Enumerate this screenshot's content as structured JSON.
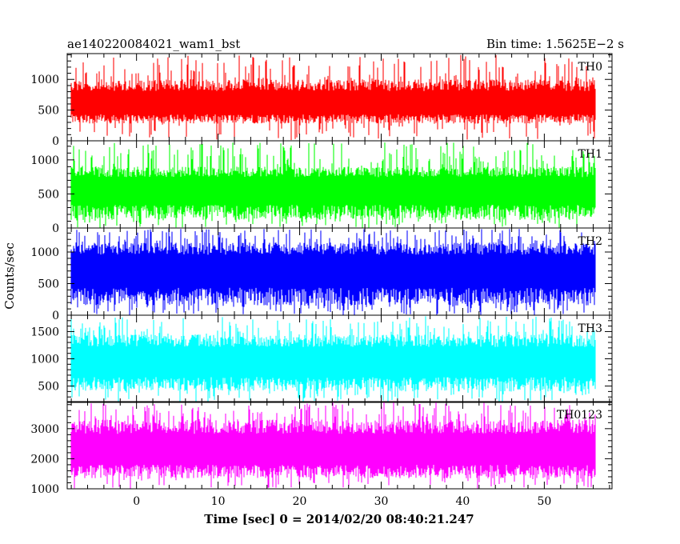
{
  "header": {
    "left_title": "ae140220084021_wam1_bst",
    "right_title": "Bin time: 1.5625E−2 s"
  },
  "chart_data": {
    "type": "line",
    "title": "ae140220084021_wam1_bst",
    "subtitle": "Bin time: 1.5625E−2 s",
    "xlabel": "Time [sec] 0 = 2014/02/20 08:40:21.247",
    "ylabel": "Counts/sec",
    "xlim": [
      -8.5,
      58.3
    ],
    "x_ticks": [
      0,
      10,
      20,
      30,
      40,
      50
    ],
    "data_x_range": [
      -8,
      56.2
    ],
    "bin_time_s": 0.015625,
    "grid": false,
    "legend": "panel labels top-right of each panel",
    "panels": [
      {
        "name": "TH0",
        "color": "#ff0000",
        "ylim": [
          0,
          1420
        ],
        "y_ticks": [
          0,
          500,
          1000
        ],
        "mean": 580,
        "low": 280,
        "high": 1000,
        "spike_max": 1400
      },
      {
        "name": "TH1",
        "color": "#00ff00",
        "ylim": [
          0,
          1280
        ],
        "y_ticks": [
          0,
          500,
          1000
        ],
        "mean": 560,
        "low": 120,
        "high": 900,
        "spike_max": 1260
      },
      {
        "name": "TH2",
        "color": "#0000ff",
        "ylim": [
          0,
          1380
        ],
        "y_ticks": [
          0,
          500,
          1000
        ],
        "mean": 720,
        "low": 150,
        "high": 1150,
        "spike_max": 1370
      },
      {
        "name": "TH3",
        "color": "#00ffff",
        "ylim": [
          200,
          1800
        ],
        "y_ticks": [
          500,
          1000,
          1500
        ],
        "mean": 930,
        "low": 400,
        "high": 1450,
        "spike_max": 1780
      },
      {
        "name": "TH0123",
        "color": "#ff00ff",
        "ylim": [
          1000,
          3900
        ],
        "y_ticks": [
          1000,
          2000,
          3000
        ],
        "mean": 2250,
        "low": 1350,
        "high": 3300,
        "spike_max": 3880
      }
    ]
  }
}
